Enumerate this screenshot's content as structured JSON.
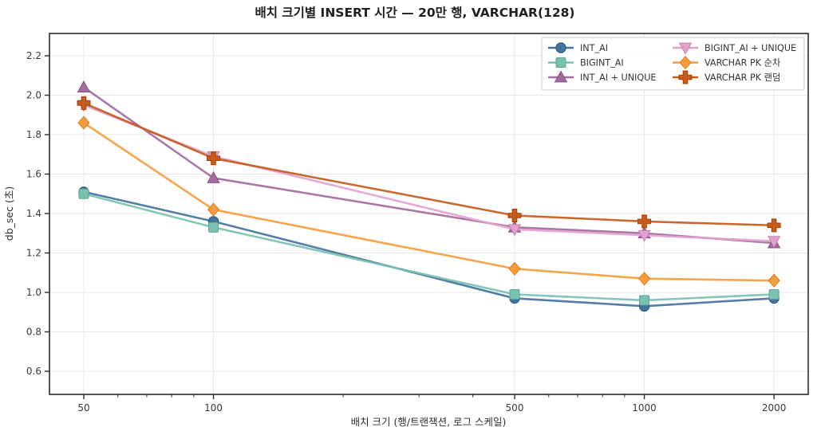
{
  "chart_data": {
    "type": "line",
    "title": "배치 크기별 INSERT 시간 — 20만 행, VARCHAR(128)",
    "xlabel": "배치 크기 (행/트랜잭션, 로그 스케일)",
    "ylabel": "db_sec (초)",
    "x_scale": "log",
    "x": [
      50,
      100,
      500,
      1000,
      2000
    ],
    "x_tick_labels": [
      "50",
      "100",
      "500",
      "1000",
      "2000"
    ],
    "x_minor_ticks": [
      60,
      70,
      80,
      90,
      200,
      300,
      400,
      600,
      700,
      800,
      900
    ],
    "y_ticks": [
      0.6,
      0.8,
      1.0,
      1.2,
      1.4,
      1.6,
      1.8,
      2.0,
      2.2
    ],
    "xlim": [
      41.5,
      2450
    ],
    "ylim": [
      0.48,
      2.31
    ],
    "grid": true,
    "legend_position": "upper-right, 2 columns",
    "series": [
      {
        "name": "INT_AI",
        "marker": "circle",
        "color": "#44739e",
        "values": [
          1.51,
          1.36,
          0.97,
          0.93,
          0.97
        ]
      },
      {
        "name": "BIGINT_AI",
        "marker": "square",
        "color": "#79c2b2",
        "values": [
          1.5,
          1.33,
          0.99,
          0.96,
          0.99
        ]
      },
      {
        "name": "INT_AI + UNIQUE",
        "marker": "triangle-up",
        "color": "#a46b9f",
        "values": [
          2.04,
          1.58,
          1.33,
          1.3,
          1.25
        ]
      },
      {
        "name": "BIGINT_AI + UNIQUE",
        "marker": "triangle-down",
        "color": "#e2a2d0",
        "values": [
          1.95,
          1.69,
          1.32,
          1.29,
          1.26
        ]
      },
      {
        "name": "VARCHAR PK 순차",
        "marker": "diamond",
        "color": "#f79c3d",
        "values": [
          1.86,
          1.42,
          1.12,
          1.07,
          1.06
        ]
      },
      {
        "name": "VARCHAR PK 랜덤",
        "marker": "plus",
        "color": "#c75b1e",
        "values": [
          1.96,
          1.68,
          1.39,
          1.36,
          1.34
        ]
      }
    ],
    "colors": {
      "grid": "#e8e8eb",
      "frame": "#2b2b2b",
      "tick_label": "#3a3a3a",
      "legend_border": "#cccccc",
      "legend_bg": "#ffffff"
    }
  }
}
